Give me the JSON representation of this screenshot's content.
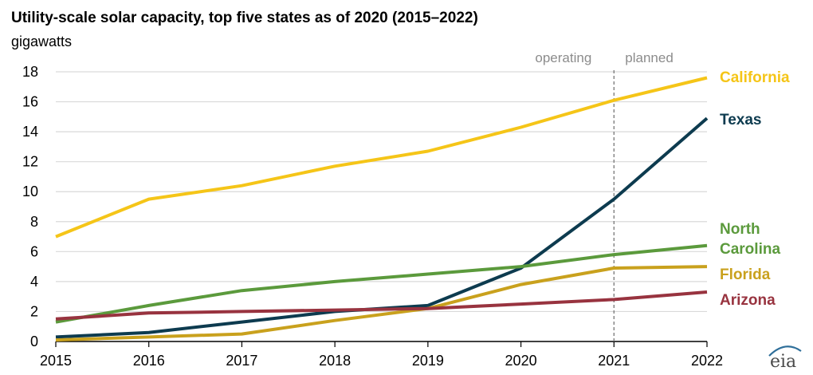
{
  "chart_data": {
    "type": "line",
    "title": "Utility-scale solar capacity, top five states as of 2020 (2015–2022)",
    "ylabel": "gigawatts",
    "x": [
      "2015",
      "2016",
      "2017",
      "2018",
      "2019",
      "2020",
      "2021",
      "2022"
    ],
    "ylim": [
      0,
      18
    ],
    "yticks": [
      "0",
      "2",
      "4",
      "6",
      "8",
      "10",
      "12",
      "14",
      "16",
      "18"
    ],
    "grid": true,
    "period_labels": {
      "operating": "operating",
      "planned": "planned"
    },
    "divider_at": "2021",
    "series": [
      {
        "name": "California",
        "label_lines": [
          "California"
        ],
        "color": "#f5c518",
        "values": [
          7.0,
          9.5,
          10.4,
          11.7,
          12.7,
          14.3,
          16.1,
          17.6
        ]
      },
      {
        "name": "Texas",
        "label_lines": [
          "Texas"
        ],
        "color": "#0d3b4f",
        "values": [
          0.3,
          0.6,
          1.3,
          2.0,
          2.4,
          4.9,
          9.5,
          14.9
        ]
      },
      {
        "name": "North Carolina",
        "label_lines": [
          "North",
          "Carolina"
        ],
        "color": "#5b9a3c",
        "values": [
          1.3,
          2.4,
          3.4,
          4.0,
          4.5,
          5.0,
          5.8,
          6.4
        ]
      },
      {
        "name": "Florida",
        "label_lines": [
          "Florida"
        ],
        "color": "#c9a11d",
        "values": [
          0.1,
          0.3,
          0.5,
          1.4,
          2.2,
          3.8,
          4.9,
          5.0
        ]
      },
      {
        "name": "Arizona",
        "label_lines": [
          "Arizona"
        ],
        "color": "#98333f",
        "values": [
          1.5,
          1.9,
          2.0,
          2.1,
          2.2,
          2.5,
          2.8,
          3.3
        ]
      }
    ]
  },
  "branding": {
    "logo_text": "eia"
  }
}
